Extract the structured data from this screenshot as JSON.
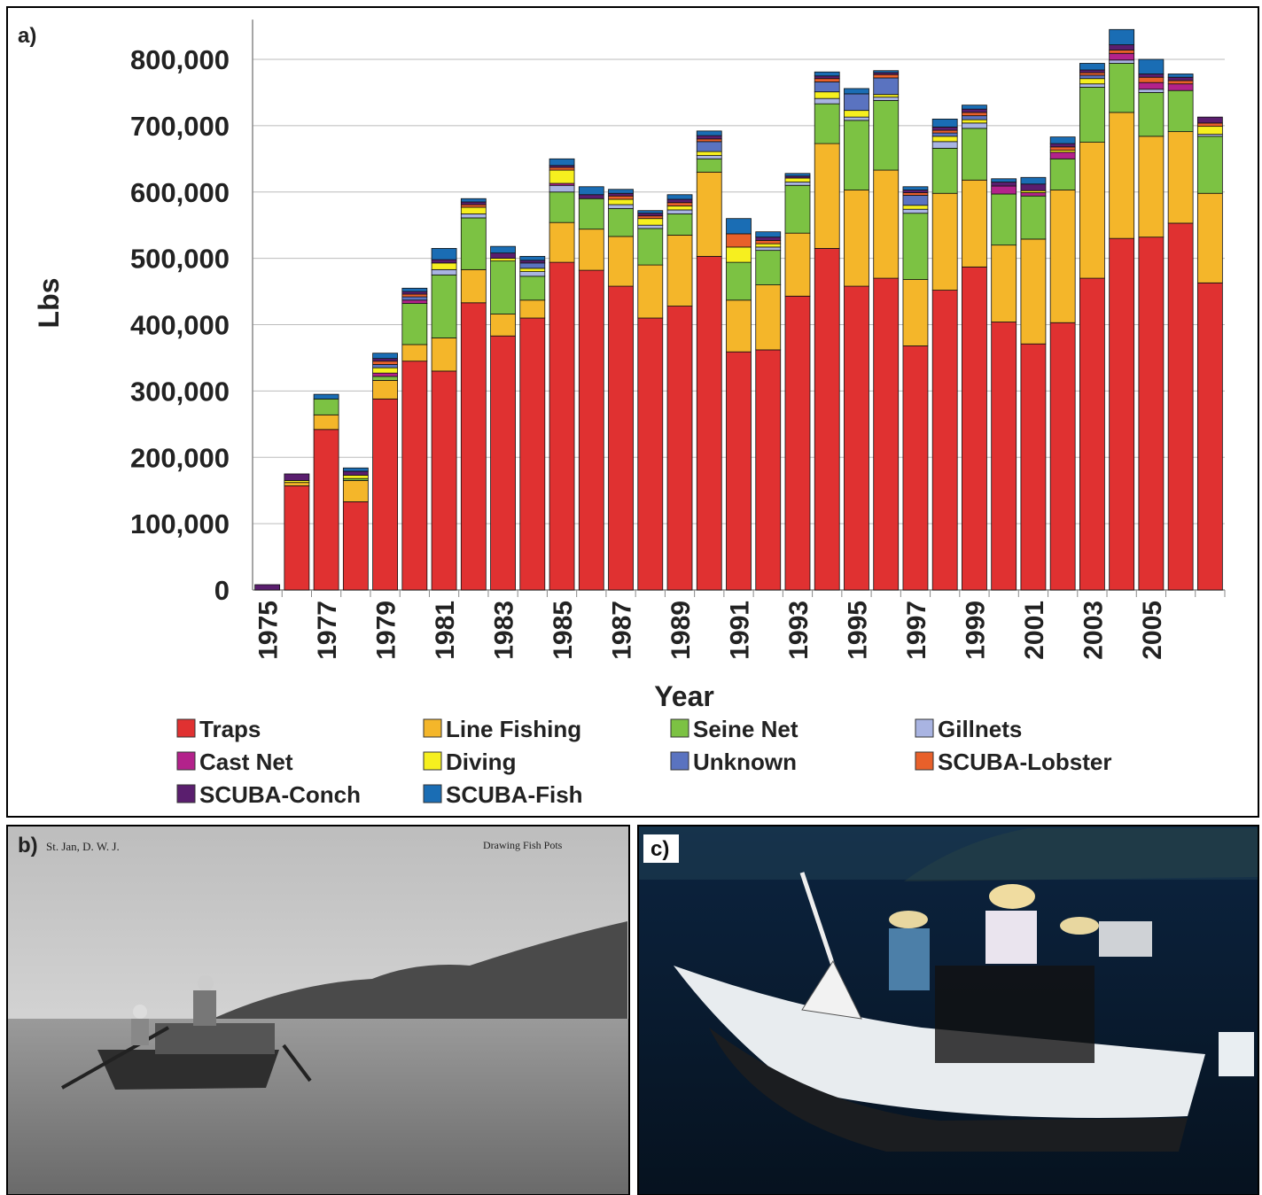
{
  "chart_data": {
    "type": "stacked-bar",
    "panel_label": "a)",
    "y_label": "Lbs",
    "x_label": "Year",
    "categories": [
      "1975",
      null,
      "1977",
      null,
      "1979",
      null,
      "1981",
      null,
      "1983",
      null,
      "1985",
      null,
      "1987",
      null,
      "1989",
      null,
      "1991",
      null,
      "1993",
      null,
      "1995",
      null,
      "1997",
      null,
      "1999",
      null,
      "2001",
      null,
      "2003",
      null,
      "2005",
      null,
      null
    ],
    "series": [
      {
        "name": "Traps",
        "color": "#e03131",
        "values": [
          0,
          157000,
          242000,
          133000,
          288000,
          345000,
          330000,
          433000,
          383000,
          410000,
          494000,
          482000,
          458000,
          410000,
          428000,
          503000,
          359000,
          362000,
          443000,
          515000,
          458000,
          470000,
          368000,
          452000,
          487000,
          404000,
          371000,
          403000,
          470000,
          530000,
          532000,
          553000,
          463000
        ]
      },
      {
        "name": "Line Fishing",
        "color": "#f4b62a",
        "values": [
          0,
          5000,
          22000,
          32000,
          28000,
          25000,
          50000,
          50000,
          33000,
          27000,
          60000,
          62000,
          75000,
          80000,
          107000,
          127000,
          78000,
          98000,
          95000,
          158000,
          145000,
          163000,
          100000,
          146000,
          131000,
          116000,
          158000,
          200000,
          205000,
          190000,
          152000,
          138000,
          135000
        ]
      },
      {
        "name": "Seine Net",
        "color": "#7cc243",
        "values": [
          0,
          0,
          24000,
          3000,
          6000,
          62000,
          95000,
          78000,
          80000,
          36000,
          46000,
          46000,
          42000,
          55000,
          32000,
          20000,
          57000,
          52000,
          72000,
          60000,
          105000,
          105000,
          100000,
          68000,
          78000,
          77000,
          65000,
          47000,
          83000,
          74000,
          66000,
          62000,
          86000
        ]
      },
      {
        "name": "Gillnets",
        "color": "#a9b4e2",
        "values": [
          0,
          0,
          0,
          0,
          0,
          0,
          8000,
          6000,
          0,
          7000,
          10000,
          0,
          6000,
          5000,
          6000,
          5000,
          0,
          5000,
          5000,
          8000,
          5000,
          5000,
          6000,
          10000,
          8000,
          0,
          0,
          0,
          5000,
          5000,
          5000,
          0,
          3000
        ]
      },
      {
        "name": "Cast Net",
        "color": "#b3228b",
        "values": [
          0,
          0,
          0,
          0,
          5000,
          5000,
          0,
          0,
          0,
          0,
          3000,
          0,
          0,
          0,
          0,
          0,
          0,
          0,
          0,
          0,
          0,
          0,
          0,
          0,
          0,
          12000,
          5000,
          10000,
          0,
          10000,
          10000,
          10000,
          0
        ]
      },
      {
        "name": "Diving",
        "color": "#f6ef1f",
        "values": [
          0,
          3000,
          0,
          5000,
          8000,
          0,
          10000,
          10000,
          4000,
          5000,
          20000,
          0,
          8000,
          10000,
          6000,
          6000,
          23000,
          5000,
          6000,
          10000,
          10000,
          4000,
          6000,
          8000,
          5000,
          0,
          3000,
          3000,
          8000,
          0,
          0,
          0,
          12000
        ]
      },
      {
        "name": "Unknown",
        "color": "#5a73c0",
        "values": [
          0,
          0,
          0,
          0,
          5000,
          5000,
          0,
          0,
          0,
          8000,
          0,
          0,
          0,
          0,
          0,
          15000,
          0,
          0,
          0,
          15000,
          25000,
          25000,
          15000,
          5000,
          6000,
          0,
          0,
          0,
          5000,
          0,
          0,
          0,
          0
        ]
      },
      {
        "name": "SCUBA-Lobster",
        "color": "#e8602a",
        "values": [
          0,
          0,
          0,
          0,
          5000,
          4000,
          0,
          4000,
          0,
          0,
          4000,
          0,
          5000,
          4000,
          5000,
          4000,
          20000,
          5000,
          0,
          5000,
          0,
          5000,
          4000,
          4000,
          5000,
          0,
          0,
          5000,
          4000,
          5000,
          8000,
          5000,
          5000
        ]
      },
      {
        "name": "SCUBA-Conch",
        "color": "#5a1e6e",
        "values": [
          8000,
          10000,
          0,
          6000,
          4000,
          4000,
          5000,
          4000,
          8000,
          4000,
          3000,
          6000,
          4000,
          4000,
          5000,
          5000,
          0,
          5000,
          3000,
          4000,
          0,
          3000,
          4000,
          5000,
          5000,
          6000,
          10000,
          5000,
          4000,
          8000,
          5000,
          5000,
          9000
        ]
      },
      {
        "name": "SCUBA-Fish",
        "color": "#1a6db4",
        "values": [
          0,
          0,
          7000,
          5000,
          8000,
          5000,
          17000,
          5000,
          10000,
          6000,
          10000,
          12000,
          6000,
          4000,
          7000,
          7000,
          23000,
          8000,
          4000,
          6000,
          8000,
          3000,
          5000,
          12000,
          6000,
          5000,
          10000,
          10000,
          10000,
          23000,
          22000,
          5000,
          0
        ]
      }
    ],
    "ylim": [
      0,
      860000
    ],
    "yticks": [
      0,
      {
        "value": 100000,
        "label": "100,000"
      },
      {
        "value": 200000,
        "label": "200,000"
      },
      {
        "value": 300000,
        "label": "300,000"
      },
      {
        "value": 400000,
        "label": "400,000"
      },
      {
        "value": 500000,
        "label": "500,000"
      },
      {
        "value": 600000,
        "label": "600,000"
      },
      {
        "value": 700000,
        "label": "700,000"
      },
      {
        "value": 800000,
        "label": "800,000"
      }
    ],
    "grid": true,
    "legend": "bottom"
  },
  "photos": [
    {
      "label": "b)",
      "caption_left": "St. Jan, D. W. J.",
      "caption_right": "Drawing Fish Pots"
    },
    {
      "label": "c)"
    }
  ]
}
